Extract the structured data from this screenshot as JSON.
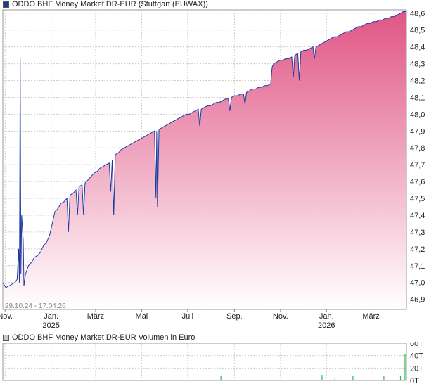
{
  "legend": {
    "price_label": "ODDO BHF Money Market DR-EUR (Stuttgart (EUWAX))",
    "volume_label": "ODDO BHF Money Market DR-EUR Volumen in Euro"
  },
  "date_range": "29.10.24 - 17.04.26",
  "colors": {
    "price_line": "#1a3a9e",
    "area_top": "#e05585",
    "area_bottom": "#ffffff",
    "grid": "#cccccc",
    "volume_bar": "#2fb84a",
    "price_swatch": "#1a3a9e",
    "volume_swatch": "#c8c8c8"
  },
  "chart_data": [
    {
      "type": "line",
      "title": "ODDO BHF Money Market DR-EUR (Stuttgart (EUWAX))",
      "ylabel": "",
      "xlabel": "",
      "ylim": [
        46.84,
        48.62
      ],
      "grid": true,
      "y_ticks": [
        "48,6",
        "48,5",
        "48,4",
        "48,3",
        "48,2",
        "48,1",
        "48,0",
        "47,9",
        "47,8",
        "47,7",
        "47,6",
        "47,5",
        "47,4",
        "47,3",
        "47,2",
        "47,1",
        "47,0",
        "46,9"
      ],
      "x_ticks": [
        {
          "label": "Nov.",
          "sub": "",
          "date": "2024-11-01"
        },
        {
          "label": "Jan.",
          "sub": "2025",
          "date": "2025-01-01"
        },
        {
          "label": "März",
          "sub": "",
          "date": "2025-03-01"
        },
        {
          "label": "Mai",
          "sub": "",
          "date": "2025-05-01"
        },
        {
          "label": "Juli",
          "sub": "",
          "date": "2025-07-01"
        },
        {
          "label": "Sep.",
          "sub": "",
          "date": "2025-09-01"
        },
        {
          "label": "Nov.",
          "sub": "",
          "date": "2025-11-01"
        },
        {
          "label": "Jan.",
          "sub": "2026",
          "date": "2026-01-01"
        },
        {
          "label": "März",
          "sub": "",
          "date": "2026-03-01"
        }
      ],
      "x_range": [
        "2024-10-29",
        "2026-04-17"
      ],
      "series": [
        {
          "points": [
            [
              "2024-10-29",
              47.0
            ],
            [
              "2024-11-02",
              46.97
            ],
            [
              "2024-11-06",
              46.98
            ],
            [
              "2024-11-10",
              46.99
            ],
            [
              "2024-11-14",
              47.0
            ],
            [
              "2024-11-17",
              47.02
            ],
            [
              "2024-11-19",
              47.2
            ],
            [
              "2024-11-20",
              47.0
            ],
            [
              "2024-11-21",
              48.33
            ],
            [
              "2024-11-22",
              47.05
            ],
            [
              "2024-11-23",
              47.4
            ],
            [
              "2024-11-25",
              47.25
            ],
            [
              "2024-11-26",
              46.98
            ],
            [
              "2024-11-28",
              47.05
            ],
            [
              "2024-12-02",
              47.1
            ],
            [
              "2024-12-06",
              47.12
            ],
            [
              "2024-12-10",
              47.15
            ],
            [
              "2024-12-14",
              47.16
            ],
            [
              "2024-12-18",
              47.18
            ],
            [
              "2024-12-22",
              47.22
            ],
            [
              "2024-12-26",
              47.24
            ],
            [
              "2024-12-30",
              47.28
            ],
            [
              "2025-01-03",
              47.36
            ],
            [
              "2025-01-06",
              47.42
            ],
            [
              "2025-01-10",
              47.44
            ],
            [
              "2025-01-14",
              47.47
            ],
            [
              "2025-01-18",
              47.48
            ],
            [
              "2025-01-22",
              47.5
            ],
            [
              "2025-01-24",
              47.3
            ],
            [
              "2025-01-26",
              47.52
            ],
            [
              "2025-01-30",
              47.53
            ],
            [
              "2025-02-03",
              47.55
            ],
            [
              "2025-02-05",
              47.4
            ],
            [
              "2025-02-07",
              47.57
            ],
            [
              "2025-02-11",
              47.58
            ],
            [
              "2025-02-13",
              47.4
            ],
            [
              "2025-02-15",
              47.59
            ],
            [
              "2025-02-19",
              47.61
            ],
            [
              "2025-02-23",
              47.63
            ],
            [
              "2025-02-27",
              47.65
            ],
            [
              "2025-03-03",
              47.66
            ],
            [
              "2025-03-07",
              47.68
            ],
            [
              "2025-03-11",
              47.69
            ],
            [
              "2025-03-15",
              47.7
            ],
            [
              "2025-03-19",
              47.71
            ],
            [
              "2025-03-21",
              47.54
            ],
            [
              "2025-03-23",
              47.73
            ],
            [
              "2025-03-25",
              47.4
            ],
            [
              "2025-03-27",
              47.76
            ],
            [
              "2025-03-31",
              47.77
            ],
            [
              "2025-04-04",
              47.79
            ],
            [
              "2025-04-08",
              47.8
            ],
            [
              "2025-04-12",
              47.81
            ],
            [
              "2025-04-16",
              47.82
            ],
            [
              "2025-04-20",
              47.83
            ],
            [
              "2025-04-24",
              47.84
            ],
            [
              "2025-04-28",
              47.85
            ],
            [
              "2025-05-02",
              47.86
            ],
            [
              "2025-05-06",
              47.87
            ],
            [
              "2025-05-10",
              47.88
            ],
            [
              "2025-05-14",
              47.89
            ],
            [
              "2025-05-18",
              47.9
            ],
            [
              "2025-05-20",
              47.5
            ],
            [
              "2025-05-21",
              47.9
            ],
            [
              "2025-05-22",
              47.45
            ],
            [
              "2025-05-24",
              47.91
            ],
            [
              "2025-05-28",
              47.92
            ],
            [
              "2025-06-01",
              47.93
            ],
            [
              "2025-06-05",
              47.94
            ],
            [
              "2025-06-09",
              47.95
            ],
            [
              "2025-06-13",
              47.96
            ],
            [
              "2025-06-17",
              47.97
            ],
            [
              "2025-06-21",
              47.98
            ],
            [
              "2025-06-25",
              47.99
            ],
            [
              "2025-06-29",
              48.0
            ],
            [
              "2025-07-03",
              48.0
            ],
            [
              "2025-07-07",
              48.01
            ],
            [
              "2025-07-11",
              48.02
            ],
            [
              "2025-07-15",
              48.03
            ],
            [
              "2025-07-17",
              47.93
            ],
            [
              "2025-07-19",
              48.03
            ],
            [
              "2025-07-23",
              48.04
            ],
            [
              "2025-07-27",
              48.05
            ],
            [
              "2025-07-31",
              48.05
            ],
            [
              "2025-08-04",
              48.06
            ],
            [
              "2025-08-08",
              48.07
            ],
            [
              "2025-08-12",
              48.07
            ],
            [
              "2025-08-16",
              48.08
            ],
            [
              "2025-08-20",
              48.09
            ],
            [
              "2025-08-24",
              48.09
            ],
            [
              "2025-08-26",
              48.02
            ],
            [
              "2025-08-28",
              48.1
            ],
            [
              "2025-09-01",
              48.11
            ],
            [
              "2025-09-05",
              48.11
            ],
            [
              "2025-09-09",
              48.12
            ],
            [
              "2025-09-13",
              48.12
            ],
            [
              "2025-09-15",
              48.06
            ],
            [
              "2025-09-17",
              48.13
            ],
            [
              "2025-09-21",
              48.14
            ],
            [
              "2025-09-25",
              48.15
            ],
            [
              "2025-09-29",
              48.15
            ],
            [
              "2025-10-03",
              48.16
            ],
            [
              "2025-10-07",
              48.16
            ],
            [
              "2025-10-11",
              48.17
            ],
            [
              "2025-10-15",
              48.17
            ],
            [
              "2025-10-19",
              48.18
            ],
            [
              "2025-10-21",
              48.28
            ],
            [
              "2025-10-23",
              48.3
            ],
            [
              "2025-10-27",
              48.31
            ],
            [
              "2025-10-31",
              48.32
            ],
            [
              "2025-11-04",
              48.32
            ],
            [
              "2025-11-08",
              48.33
            ],
            [
              "2025-11-12",
              48.33
            ],
            [
              "2025-11-16",
              48.34
            ],
            [
              "2025-11-18",
              48.22
            ],
            [
              "2025-11-20",
              48.35
            ],
            [
              "2025-11-24",
              48.36
            ],
            [
              "2025-11-26",
              48.2
            ],
            [
              "2025-11-28",
              48.37
            ],
            [
              "2025-12-02",
              48.38
            ],
            [
              "2025-12-06",
              48.38
            ],
            [
              "2025-12-10",
              48.39
            ],
            [
              "2025-12-14",
              48.4
            ],
            [
              "2025-12-16",
              48.33
            ],
            [
              "2025-12-18",
              48.4
            ],
            [
              "2025-12-22",
              48.41
            ],
            [
              "2025-12-26",
              48.42
            ],
            [
              "2025-12-30",
              48.43
            ],
            [
              "2026-01-03",
              48.44
            ],
            [
              "2026-01-07",
              48.45
            ],
            [
              "2026-01-11",
              48.46
            ],
            [
              "2026-01-15",
              48.46
            ],
            [
              "2026-01-19",
              48.47
            ],
            [
              "2026-01-23",
              48.48
            ],
            [
              "2026-01-27",
              48.49
            ],
            [
              "2026-01-31",
              48.49
            ],
            [
              "2026-02-04",
              48.5
            ],
            [
              "2026-02-08",
              48.51
            ],
            [
              "2026-02-12",
              48.52
            ],
            [
              "2026-02-16",
              48.52
            ],
            [
              "2026-02-20",
              48.53
            ],
            [
              "2026-02-24",
              48.54
            ],
            [
              "2026-02-28",
              48.54
            ],
            [
              "2026-03-04",
              48.55
            ],
            [
              "2026-03-08",
              48.55
            ],
            [
              "2026-03-12",
              48.56
            ],
            [
              "2026-03-16",
              48.56
            ],
            [
              "2026-03-20",
              48.57
            ],
            [
              "2026-03-24",
              48.57
            ],
            [
              "2026-03-28",
              48.58
            ],
            [
              "2026-04-01",
              48.58
            ],
            [
              "2026-04-05",
              48.59
            ],
            [
              "2026-04-09",
              48.6
            ],
            [
              "2026-04-13",
              48.61
            ],
            [
              "2026-04-17",
              48.61
            ]
          ]
        }
      ]
    },
    {
      "type": "bar",
      "title": "ODDO BHF Money Market DR-EUR Volumen in Euro",
      "ylim": [
        0,
        60
      ],
      "y_ticks": [
        "60T",
        "40T",
        "20T",
        "0T"
      ],
      "y_tick_values": [
        60,
        40,
        20,
        0
      ],
      "grid": true,
      "series": [
        {
          "points": [
            [
              "2025-08-14",
              8
            ],
            [
              "2025-12-26",
              9
            ],
            [
              "2026-01-12",
              3
            ],
            [
              "2026-02-05",
              7
            ],
            [
              "2026-03-18",
              7
            ],
            [
              "2026-04-09",
              8
            ],
            [
              "2026-04-15",
              42
            ]
          ]
        }
      ]
    }
  ]
}
